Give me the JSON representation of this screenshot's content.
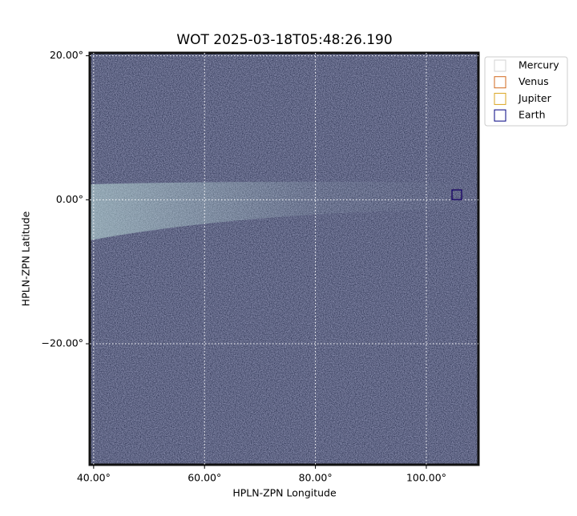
{
  "chart_data": {
    "type": "image",
    "title": "WOT 2025-03-18T05:48:26.190",
    "xlabel": "HPLN-ZPN Longitude",
    "ylabel": "HPLN-ZPN Latitude",
    "xlim": [
      39.3,
      109.4
    ],
    "ylim": [
      -36.8,
      20.4
    ],
    "xticks": [
      {
        "value": 40,
        "label": "40.00°"
      },
      {
        "value": 60,
        "label": "60.00°"
      },
      {
        "value": 80,
        "label": "80.00°"
      },
      {
        "value": 100,
        "label": "100.00°"
      }
    ],
    "yticks": [
      {
        "value": 20,
        "label": "20.00°"
      },
      {
        "value": 0,
        "label": "0.00°"
      },
      {
        "value": -20,
        "label": "−20.00°"
      }
    ],
    "grid": true,
    "legend": "upper right outside",
    "series": [
      {
        "name": "Mercury",
        "color": "#d3d3d3",
        "x": [
          105.5
        ],
        "y": [
          0.7
        ]
      },
      {
        "name": "Venus",
        "color": "#d2691e",
        "x": [
          105.5
        ],
        "y": [
          0.7
        ]
      },
      {
        "name": "Jupiter",
        "color": "#daa520",
        "x": [
          105.5
        ],
        "y": [
          0.7
        ]
      },
      {
        "name": "Earth",
        "color": "#000080",
        "x": [
          105.5
        ],
        "y": [
          0.7
        ]
      }
    ]
  }
}
